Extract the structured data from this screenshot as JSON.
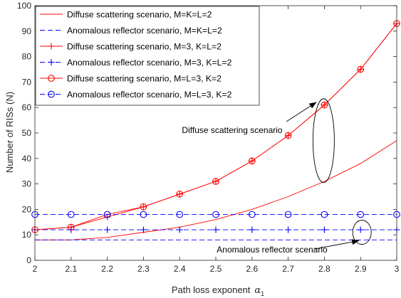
{
  "chart_data": {
    "type": "line",
    "xlabel": "Path loss exponent",
    "xlabel_symbol": "α",
    "xlabel_sub": "1",
    "ylabel": "Number of RISs (N)",
    "xlim": [
      2,
      3
    ],
    "ylim": [
      0,
      100
    ],
    "x_ticks": [
      "2",
      "2.1",
      "2.2",
      "2.3",
      "2.4",
      "2.5",
      "2.6",
      "2.7",
      "2.8",
      "2.9",
      "3"
    ],
    "y_ticks": [
      "0",
      "10",
      "20",
      "30",
      "40",
      "50",
      "60",
      "70",
      "80",
      "90",
      "100"
    ],
    "grid": false,
    "legend_position": "top-left",
    "x": [
      2,
      2.1,
      2.2,
      2.3,
      2.4,
      2.5,
      2.6,
      2.7,
      2.8,
      2.9,
      3
    ],
    "series": [
      {
        "name": "Diffuse scattering scenario, M=K=L=2",
        "color": "#ff0000",
        "dash": "solid",
        "marker": "none",
        "values": [
          8,
          8,
          9,
          11,
          13,
          16,
          20,
          25,
          31,
          38,
          47
        ]
      },
      {
        "name": "Anomalous reflector scenario, M=K=L=2",
        "color": "#0000ff",
        "dash": "dashed",
        "marker": "none",
        "values": [
          8,
          8,
          8,
          8,
          8,
          8,
          8,
          8,
          8,
          8,
          8
        ]
      },
      {
        "name": "Diffuse scattering scenario, M=3, K=L=2",
        "color": "#ff0000",
        "dash": "solid",
        "marker": "plus",
        "values": [
          12,
          13,
          17,
          21,
          26,
          31,
          39,
          49,
          61,
          75,
          93
        ]
      },
      {
        "name": "Anomalous reflector scenario, M=3, K=L=2",
        "color": "#0000ff",
        "dash": "dashed",
        "marker": "plus",
        "values": [
          12,
          12,
          12,
          12,
          12,
          12,
          12,
          12,
          12,
          12,
          12
        ]
      },
      {
        "name": "Diffuse scattering scenario, M=L=3, K=2",
        "color": "#ff0000",
        "dash": "solid",
        "marker": "circle",
        "values": [
          12,
          13,
          18,
          21,
          26,
          31,
          39,
          49,
          61,
          75,
          93
        ]
      },
      {
        "name": "Anomalous reflector scenario, M=L=3, K=2",
        "color": "#0000ff",
        "dash": "dashed",
        "marker": "circle",
        "values": [
          18,
          18,
          18,
          18,
          18,
          18,
          18,
          18,
          18,
          18,
          18
        ]
      }
    ],
    "annotations": [
      {
        "text": "Diffuse scattering scenario",
        "points_to": {
          "x": 2.8,
          "y": 61
        }
      },
      {
        "text": "Anomalous reflector scenario",
        "points_to": {
          "x": 2.9,
          "y": 8
        }
      }
    ]
  }
}
